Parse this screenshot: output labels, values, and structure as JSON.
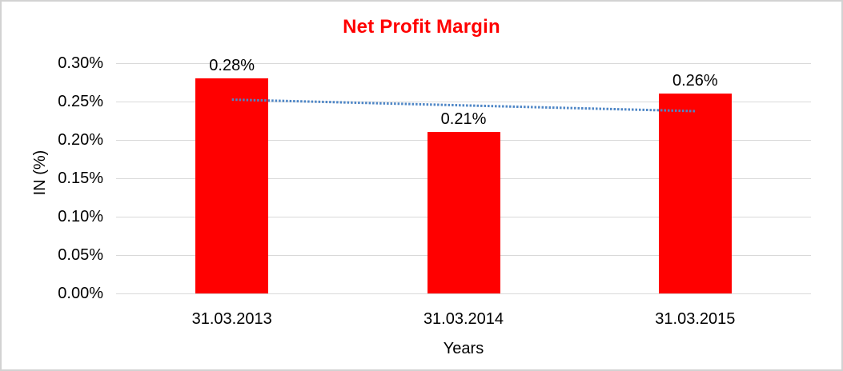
{
  "frame": {
    "background": "#ffffff",
    "border_color": "#d2d2d2"
  },
  "chart_data": {
    "type": "bar",
    "title": "Net Profit Margin",
    "title_color": "#ff0000",
    "categories": [
      "31.03.2013",
      "31.03.2014",
      "31.03.2015"
    ],
    "values": [
      0.28,
      0.21,
      0.26
    ],
    "value_labels": [
      "0.28%",
      "0.21%",
      "0.26%"
    ],
    "xlabel": "Years",
    "ylabel": "IN (%)",
    "ylim": [
      0,
      0.3
    ],
    "ytick_step": 0.05,
    "ytick_labels": [
      "0.00%",
      "0.05%",
      "0.10%",
      "0.15%",
      "0.20%",
      "0.25%",
      "0.30%"
    ],
    "grid": true,
    "legend": "none",
    "bar_color": "#ff0000",
    "gridline_color": "#d9d9d9",
    "text_color": "#000000",
    "trendline": {
      "type": "linear",
      "style": "dotted",
      "color": "#4e86c6",
      "start_value": 0.2525,
      "end_value": 0.2375
    }
  }
}
